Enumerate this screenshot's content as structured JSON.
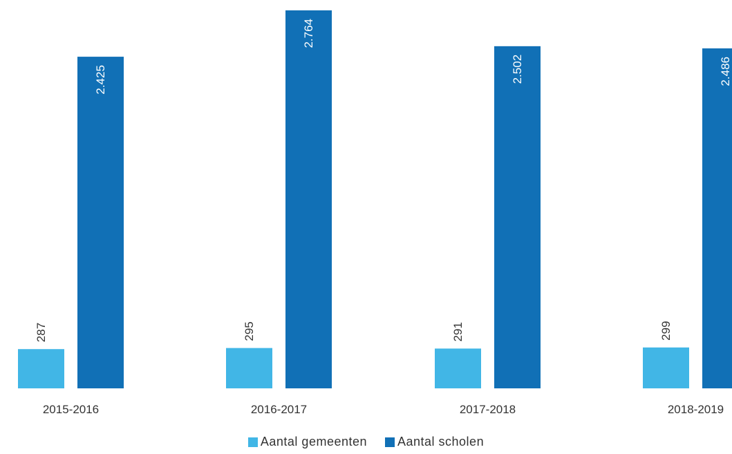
{
  "chart_data": {
    "type": "bar",
    "categories": [
      "2015-2016",
      "2016-2017",
      "2017-2018",
      "2018-2019"
    ],
    "series": [
      {
        "name": "Aantal gemeenten",
        "color": "#41b6e6",
        "values": [
          287,
          295,
          291,
          299
        ],
        "labels": [
          "287",
          "295",
          "291",
          "299"
        ]
      },
      {
        "name": "Aantal scholen",
        "color": "#1170b6",
        "values": [
          2425,
          2764,
          2502,
          2486
        ],
        "labels": [
          "2.425",
          "2.764",
          "2.502",
          "2.486"
        ]
      }
    ],
    "ylim": [
      0,
      2764
    ],
    "grid": false,
    "legend": "bottom-center"
  }
}
